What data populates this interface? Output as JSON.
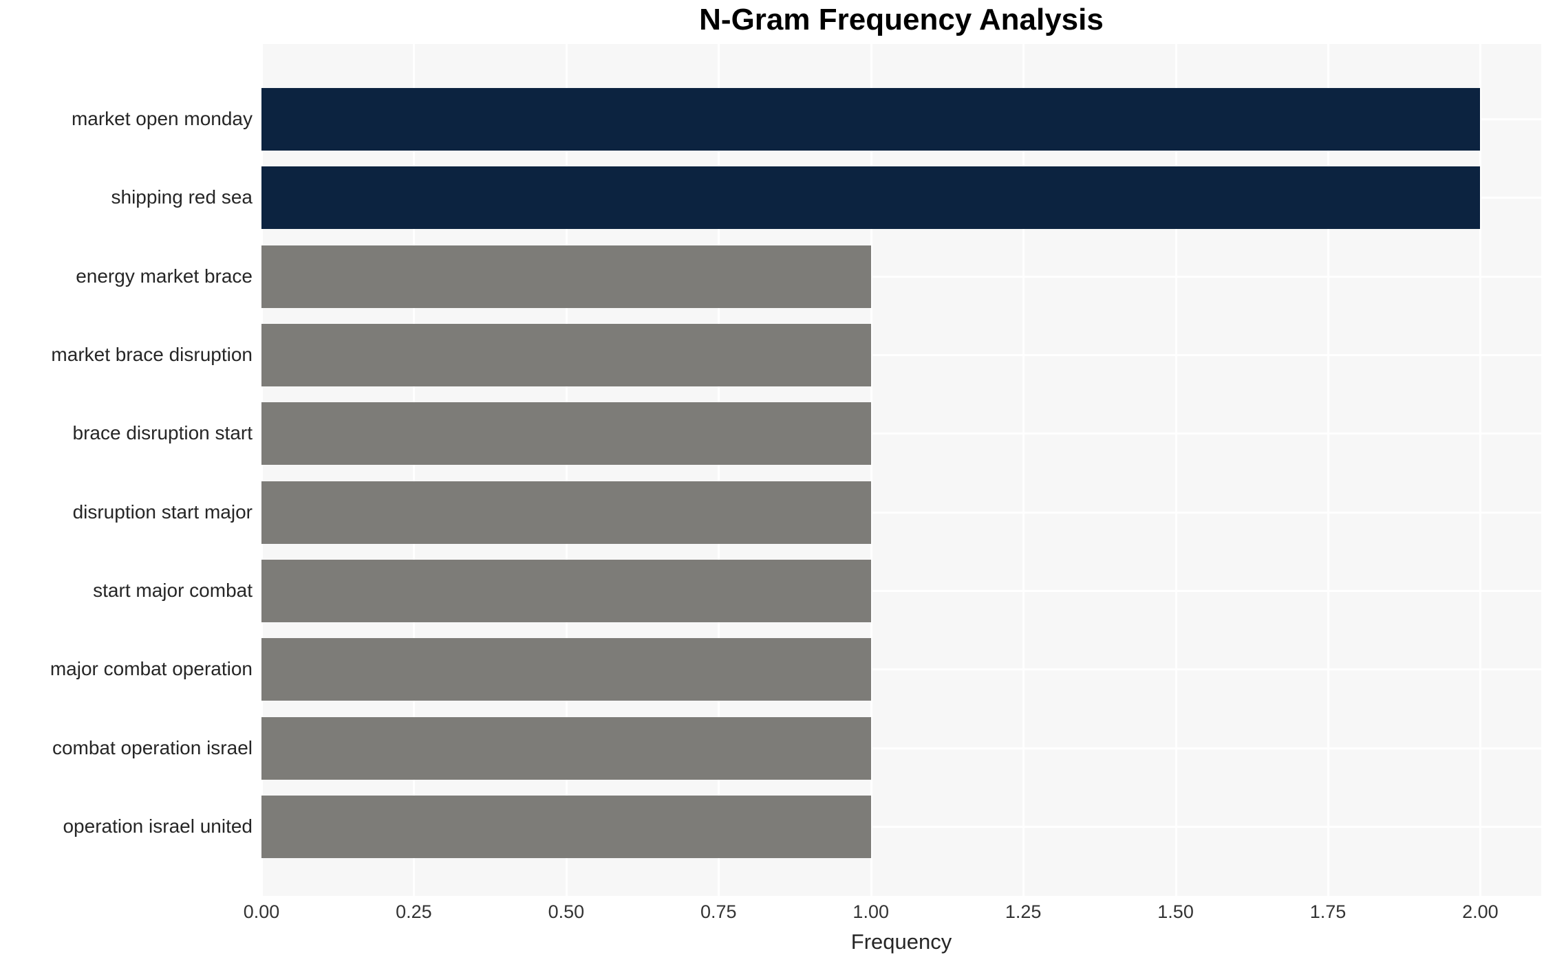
{
  "chart_data": {
    "type": "bar",
    "orientation": "horizontal",
    "title": "N-Gram Frequency Analysis",
    "xlabel": "Frequency",
    "ylabel": "",
    "categories": [
      "market open monday",
      "shipping red sea",
      "energy market brace",
      "market brace disruption",
      "brace disruption start",
      "disruption start major",
      "start major combat",
      "major combat operation",
      "combat operation israel",
      "operation israel united"
    ],
    "values": [
      2.0,
      2.0,
      1.0,
      1.0,
      1.0,
      1.0,
      1.0,
      1.0,
      1.0,
      1.0
    ],
    "bar_colors": [
      "#0c2340",
      "#0c2340",
      "#7d7c78",
      "#7d7c78",
      "#7d7c78",
      "#7d7c78",
      "#7d7c78",
      "#7d7c78",
      "#7d7c78",
      "#7d7c78"
    ],
    "xtick_values": [
      0.0,
      0.25,
      0.5,
      0.75,
      1.0,
      1.25,
      1.5,
      1.75,
      2.0
    ],
    "xtick_labels": [
      "0.00",
      "0.25",
      "0.50",
      "0.75",
      "1.00",
      "1.25",
      "1.50",
      "1.75",
      "2.00"
    ],
    "xlim": [
      0,
      2.1
    ],
    "grid": true,
    "legend": "none",
    "colors": {
      "plot_background": "#f7f7f7",
      "grid_line": "#ffffff",
      "high_series": "#0c2340",
      "low_series": "#7d7c78",
      "title_text": "#000000",
      "label_text": "#262626",
      "tick_text": "#333333"
    }
  }
}
